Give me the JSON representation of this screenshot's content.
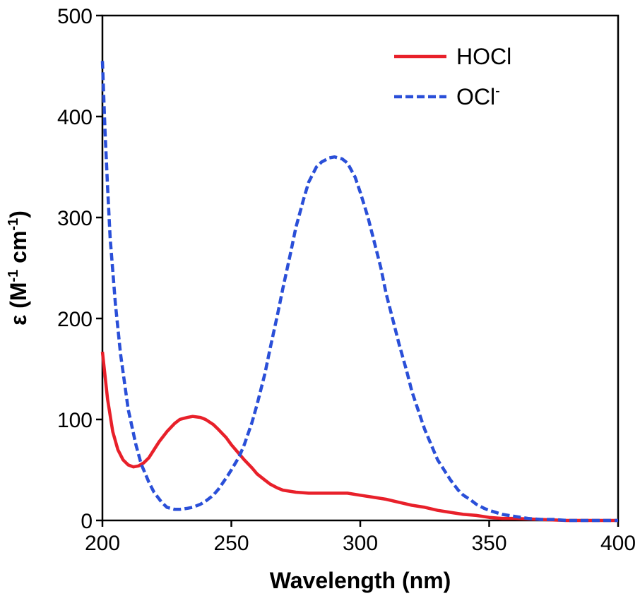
{
  "chart_data": {
    "type": "line",
    "title": "",
    "xlabel": "Wavelength (nm)",
    "ylabel": {
      "prefix": "ε (M",
      "sup1": "-1",
      "middle": " cm",
      "sup2": "-1",
      "suffix": ")"
    },
    "xlim": [
      200,
      400
    ],
    "ylim": [
      0,
      500
    ],
    "xticks": [
      200,
      250,
      300,
      350,
      400
    ],
    "yticks": [
      0,
      100,
      200,
      300,
      400,
      500
    ],
    "grid": false,
    "legend_position": "top-right",
    "series": [
      {
        "name": "HOCl",
        "name_sup": "",
        "color": "#e8202a",
        "style": "solid",
        "x": [
          200,
          202,
          204,
          206,
          208,
          210,
          212,
          214,
          216,
          218,
          220,
          222,
          225,
          228,
          230,
          233,
          235,
          238,
          240,
          243,
          245,
          248,
          250,
          253,
          255,
          258,
          260,
          263,
          265,
          268,
          270,
          275,
          280,
          285,
          290,
          295,
          300,
          305,
          310,
          315,
          320,
          325,
          330,
          335,
          340,
          345,
          350,
          355,
          360,
          370,
          380,
          390,
          400
        ],
        "y": [
          167,
          120,
          88,
          70,
          60,
          55,
          53,
          54,
          57,
          62,
          70,
          78,
          88,
          96,
          100,
          102,
          103,
          102,
          100,
          95,
          90,
          82,
          75,
          66,
          60,
          52,
          46,
          40,
          36,
          32,
          30,
          28,
          27,
          27,
          27,
          27,
          25,
          23,
          21,
          18,
          15,
          13,
          10,
          8,
          6,
          5,
          3,
          2,
          2,
          1,
          0,
          0,
          0
        ]
      },
      {
        "name": "OCl",
        "name_sup": "-",
        "color": "#2a4fd8",
        "style": "dashed",
        "x": [
          200,
          201,
          202,
          203,
          205,
          207,
          210,
          213,
          215,
          218,
          220,
          223,
          225,
          228,
          230,
          233,
          235,
          238,
          240,
          243,
          245,
          248,
          250,
          253,
          255,
          258,
          260,
          263,
          265,
          268,
          270,
          273,
          275,
          278,
          280,
          283,
          285,
          288,
          290,
          293,
          295,
          298,
          300,
          303,
          305,
          308,
          310,
          313,
          315,
          318,
          320,
          323,
          325,
          328,
          330,
          333,
          335,
          338,
          340,
          343,
          345,
          348,
          350,
          355,
          360,
          365,
          370,
          375,
          380,
          390,
          400
        ],
        "y": [
          455,
          385,
          330,
          280,
          215,
          165,
          110,
          75,
          56,
          38,
          28,
          18,
          13,
          11,
          11,
          12,
          13,
          16,
          19,
          25,
          31,
          42,
          50,
          63,
          75,
          97,
          115,
          145,
          170,
          205,
          230,
          265,
          290,
          318,
          335,
          350,
          355,
          359,
          360,
          358,
          354,
          340,
          325,
          300,
          280,
          250,
          225,
          195,
          175,
          148,
          128,
          105,
          90,
          72,
          60,
          48,
          40,
          30,
          25,
          20,
          16,
          12,
          10,
          6,
          4,
          2,
          1,
          1,
          0,
          0,
          0
        ]
      }
    ]
  }
}
